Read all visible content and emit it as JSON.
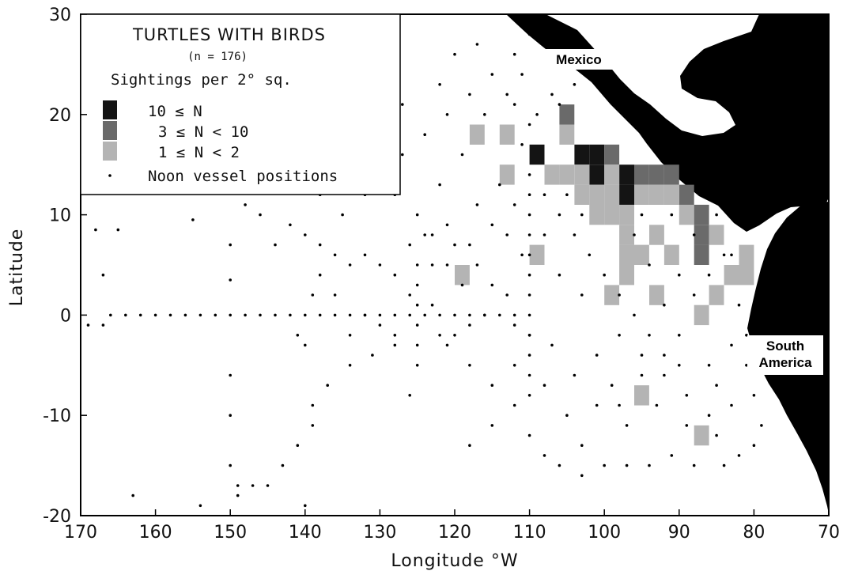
{
  "chart_data": {
    "type": "scatter",
    "title": "TURTLES WITH BIRDS",
    "subtitle": "(n = 176)",
    "xlabel": "Longitude °W",
    "ylabel": "Latitude",
    "xlim": [
      170,
      70
    ],
    "ylim": [
      -20,
      30
    ],
    "x_direction": "decreasing",
    "x_ticks": [
      "170",
      "160",
      "150",
      "140",
      "130",
      "120",
      "110",
      "100",
      "90",
      "80",
      "70"
    ],
    "y_ticks": [
      "30",
      "20",
      "10",
      "0",
      "-10",
      "-20"
    ],
    "x_tick_values": [
      170,
      160,
      150,
      140,
      130,
      120,
      110,
      100,
      90,
      80,
      70
    ],
    "y_tick_values": [
      30,
      20,
      10,
      0,
      -10,
      -20
    ],
    "grid": false,
    "legend": {
      "placement": "top-left",
      "heading": "Sightings per 2° sq.",
      "entries": [
        {
          "label": "10 ≤ N",
          "color": "#141414"
        },
        {
          "label": "3 ≤ N < 10",
          "color": "#6a6a6a"
        },
        {
          "label": "1 ≤ N < 2",
          "color": "#b4b4b4"
        },
        {
          "label": "Noon vessel positions",
          "color": "#000000"
        }
      ]
    },
    "land_labels": [
      "Mexico",
      "South America"
    ],
    "land_color": "#000000",
    "colors": {
      "high": "#141414",
      "mid": "#6a6a6a",
      "low": "#b4b4b4"
    },
    "sighting_cells_2deg": [
      {
        "lon_w": 117,
        "lat": 18,
        "class": "low"
      },
      {
        "lon_w": 113,
        "lat": 18,
        "class": "low"
      },
      {
        "lon_w": 105,
        "lat": 20,
        "class": "mid"
      },
      {
        "lon_w": 105,
        "lat": 18,
        "class": "low"
      },
      {
        "lon_w": 113,
        "lat": 14,
        "class": "low"
      },
      {
        "lon_w": 109,
        "lat": 16,
        "class": "high"
      },
      {
        "lon_w": 103,
        "lat": 16,
        "class": "high"
      },
      {
        "lon_w": 101,
        "lat": 16,
        "class": "high"
      },
      {
        "lon_w": 101,
        "lat": 14,
        "class": "high"
      },
      {
        "lon_w": 99,
        "lat": 16,
        "class": "mid"
      },
      {
        "lon_w": 97,
        "lat": 14,
        "class": "high"
      },
      {
        "lon_w": 97,
        "lat": 12,
        "class": "high"
      },
      {
        "lon_w": 95,
        "lat": 14,
        "class": "mid"
      },
      {
        "lon_w": 93,
        "lat": 14,
        "class": "mid"
      },
      {
        "lon_w": 91,
        "lat": 14,
        "class": "mid"
      },
      {
        "lon_w": 89,
        "lat": 12,
        "class": "mid"
      },
      {
        "lon_w": 91,
        "lat": 12,
        "class": "low"
      },
      {
        "lon_w": 107,
        "lat": 14,
        "class": "low"
      },
      {
        "lon_w": 105,
        "lat": 14,
        "class": "low"
      },
      {
        "lon_w": 103,
        "lat": 14,
        "class": "low"
      },
      {
        "lon_w": 99,
        "lat": 14,
        "class": "low"
      },
      {
        "lon_w": 93,
        "lat": 12,
        "class": "low"
      },
      {
        "lon_w": 103,
        "lat": 12,
        "class": "low"
      },
      {
        "lon_w": 101,
        "lat": 12,
        "class": "low"
      },
      {
        "lon_w": 99,
        "lat": 12,
        "class": "low"
      },
      {
        "lon_w": 95,
        "lat": 12,
        "class": "low"
      },
      {
        "lon_w": 101,
        "lat": 10,
        "class": "low"
      },
      {
        "lon_w": 99,
        "lat": 10,
        "class": "low"
      },
      {
        "lon_w": 97,
        "lat": 10,
        "class": "low"
      },
      {
        "lon_w": 97,
        "lat": 8,
        "class": "low"
      },
      {
        "lon_w": 97,
        "lat": 6,
        "class": "low"
      },
      {
        "lon_w": 97,
        "lat": 4,
        "class": "low"
      },
      {
        "lon_w": 95,
        "lat": 6,
        "class": "low"
      },
      {
        "lon_w": 93,
        "lat": 8,
        "class": "low"
      },
      {
        "lon_w": 91,
        "lat": 6,
        "class": "low"
      },
      {
        "lon_w": 89,
        "lat": 10,
        "class": "low"
      },
      {
        "lon_w": 87,
        "lat": 10,
        "class": "mid"
      },
      {
        "lon_w": 87,
        "lat": 8,
        "class": "mid"
      },
      {
        "lon_w": 87,
        "lat": 6,
        "class": "mid"
      },
      {
        "lon_w": 85,
        "lat": 8,
        "class": "low"
      },
      {
        "lon_w": 83,
        "lat": 4,
        "class": "low"
      },
      {
        "lon_w": 81,
        "lat": 6,
        "class": "low"
      },
      {
        "lon_w": 81,
        "lat": 4,
        "class": "low"
      },
      {
        "lon_w": 109,
        "lat": 6,
        "class": "low"
      },
      {
        "lon_w": 119,
        "lat": 4,
        "class": "low"
      },
      {
        "lon_w": 99,
        "lat": 2,
        "class": "low"
      },
      {
        "lon_w": 93,
        "lat": 2,
        "class": "low"
      },
      {
        "lon_w": 85,
        "lat": 2,
        "class": "low"
      },
      {
        "lon_w": 87,
        "lat": 0,
        "class": "low"
      },
      {
        "lon_w": 95,
        "lat": -8,
        "class": "low"
      },
      {
        "lon_w": 87,
        "lat": -12,
        "class": "low"
      }
    ],
    "noon_vessel_positions": [
      [
        168,
        8.5
      ],
      [
        165,
        8.5
      ],
      [
        167,
        4
      ],
      [
        169,
        -1
      ],
      [
        167,
        -1
      ],
      [
        163,
        -18
      ],
      [
        155,
        9.5
      ],
      [
        154,
        -19
      ],
      [
        150,
        7
      ],
      [
        150,
        3.5
      ],
      [
        150,
        -6
      ],
      [
        150,
        -10
      ],
      [
        150,
        -15
      ],
      [
        149,
        -17
      ],
      [
        149,
        -18
      ],
      [
        147,
        -17
      ],
      [
        145,
        -17
      ],
      [
        143,
        -15
      ],
      [
        141,
        -13
      ],
      [
        140,
        -19
      ],
      [
        139,
        -9
      ],
      [
        139,
        -11
      ],
      [
        137,
        -7
      ],
      [
        134,
        -5
      ],
      [
        131,
        -4
      ],
      [
        128,
        -3
      ],
      [
        126,
        -8
      ],
      [
        121,
        -3
      ],
      [
        118,
        -13
      ],
      [
        115,
        -11
      ],
      [
        112,
        -5
      ],
      [
        110,
        -12
      ],
      [
        108,
        -14
      ],
      [
        106,
        -15
      ],
      [
        103,
        -16
      ],
      [
        100,
        -15
      ],
      [
        97,
        -15
      ],
      [
        94,
        -15
      ],
      [
        91,
        -14
      ],
      [
        88,
        -15
      ],
      [
        84,
        -15
      ],
      [
        82,
        -14
      ],
      [
        80,
        -13
      ],
      [
        79,
        -11
      ],
      [
        80,
        -8
      ],
      [
        81,
        -5
      ],
      [
        81,
        -2
      ],
      [
        82,
        1
      ],
      [
        83,
        -3
      ],
      [
        85,
        -7
      ],
      [
        86,
        -10
      ],
      [
        89,
        -8
      ],
      [
        92,
        -6
      ],
      [
        95,
        -4
      ],
      [
        98,
        -2
      ],
      [
        101,
        -4
      ],
      [
        104,
        -6
      ],
      [
        107,
        -3
      ],
      [
        112,
        -9
      ],
      [
        115,
        -7
      ],
      [
        118,
        -5
      ],
      [
        120,
        -2
      ],
      [
        123,
        1
      ],
      [
        126,
        2
      ],
      [
        128,
        4
      ],
      [
        130,
        5
      ],
      [
        132,
        6
      ],
      [
        134,
        5
      ],
      [
        136,
        6
      ],
      [
        138,
        7
      ],
      [
        140,
        8
      ],
      [
        142,
        9
      ],
      [
        144,
        7
      ],
      [
        146,
        10
      ],
      [
        148,
        11
      ],
      [
        145,
        13
      ],
      [
        142,
        14
      ],
      [
        138,
        12
      ],
      [
        135,
        10
      ],
      [
        132,
        12
      ],
      [
        130,
        14
      ],
      [
        127,
        16
      ],
      [
        124,
        18
      ],
      [
        121,
        20
      ],
      [
        118,
        22
      ],
      [
        115,
        24
      ],
      [
        112,
        26
      ],
      [
        110,
        28
      ],
      [
        108,
        27
      ],
      [
        106,
        25
      ],
      [
        104,
        23
      ],
      [
        113,
        22
      ],
      [
        116,
        20
      ],
      [
        119,
        16
      ],
      [
        122,
        13
      ],
      [
        125,
        10
      ],
      [
        121,
        9
      ],
      [
        118,
        7
      ],
      [
        115,
        9
      ],
      [
        112,
        11
      ],
      [
        114,
        13
      ],
      [
        117,
        11
      ],
      [
        120,
        7
      ],
      [
        123,
        5
      ],
      [
        126,
        7
      ],
      [
        120,
        26
      ],
      [
        117,
        27
      ],
      [
        122,
        23
      ],
      [
        127,
        21
      ],
      [
        131,
        17
      ],
      [
        135,
        15
      ],
      [
        128,
        12
      ],
      [
        124,
        8
      ],
      [
        111,
        17
      ],
      [
        110,
        19
      ],
      [
        112,
        21
      ],
      [
        111,
        24
      ],
      [
        107,
        22
      ],
      [
        106,
        21
      ],
      [
        109,
        20
      ],
      [
        108,
        12
      ],
      [
        106,
        10
      ],
      [
        104,
        8
      ],
      [
        102,
        6
      ],
      [
        100,
        4
      ],
      [
        98,
        2
      ],
      [
        96,
        0
      ],
      [
        94,
        -2
      ],
      [
        92,
        -4
      ],
      [
        90,
        -2
      ],
      [
        88,
        2
      ],
      [
        86,
        4
      ],
      [
        84,
        6
      ],
      [
        82,
        9
      ],
      [
        88,
        8
      ],
      [
        90,
        4
      ],
      [
        92,
        1
      ],
      [
        94,
        5
      ],
      [
        96,
        8
      ],
      [
        103,
        2
      ],
      [
        106,
        4
      ],
      [
        108,
        8
      ],
      [
        111,
        6
      ],
      [
        113,
        2
      ],
      [
        116,
        0
      ],
      [
        118,
        -1
      ],
      [
        122,
        -2
      ],
      [
        101,
        -9
      ],
      [
        97,
        -11
      ],
      [
        93,
        -9
      ],
      [
        89,
        -11
      ],
      [
        85,
        -12
      ],
      [
        83,
        -9
      ],
      [
        86,
        -5
      ],
      [
        90,
        -5
      ],
      [
        105,
        -10
      ],
      [
        108,
        -7
      ],
      [
        110,
        -2
      ],
      [
        112,
        -1
      ],
      [
        115,
        3
      ],
      [
        117,
        5
      ],
      [
        119,
        3
      ],
      [
        121,
        5
      ],
      [
        123,
        8
      ],
      [
        113,
        8
      ],
      [
        105,
        12
      ],
      [
        103,
        10
      ],
      [
        95,
        10
      ],
      [
        91,
        10
      ],
      [
        87,
        12
      ],
      [
        85,
        10
      ],
      [
        83,
        6
      ],
      [
        95,
        -6
      ],
      [
        99,
        -7
      ],
      [
        103,
        -13
      ],
      [
        98,
        -9
      ],
      [
        140,
        0
      ],
      [
        139,
        2
      ],
      [
        141,
        -2
      ],
      [
        140,
        -3
      ],
      [
        138,
        4
      ],
      [
        136,
        2
      ],
      [
        134,
        -2
      ],
      [
        132,
        0
      ],
      [
        130,
        -1
      ],
      [
        128,
        0
      ],
      [
        126,
        0
      ],
      [
        124,
        0
      ],
      [
        122,
        0
      ],
      [
        120,
        0
      ],
      [
        118,
        0
      ],
      [
        116,
        0
      ],
      [
        114,
        0
      ],
      [
        112,
        0
      ],
      [
        110,
        0
      ],
      [
        110,
        2
      ],
      [
        110,
        4
      ],
      [
        110,
        -2
      ],
      [
        110,
        -4
      ],
      [
        110,
        -6
      ],
      [
        110,
        -8
      ],
      [
        110,
        6
      ],
      [
        110,
        8
      ],
      [
        110,
        10
      ],
      [
        110,
        12
      ],
      [
        110,
        14
      ],
      [
        160,
        0
      ],
      [
        158,
        0
      ],
      [
        156,
        0
      ],
      [
        154,
        0
      ],
      [
        152,
        0
      ],
      [
        150,
        0
      ],
      [
        148,
        0
      ],
      [
        146,
        0
      ],
      [
        144,
        0
      ],
      [
        142,
        0
      ],
      [
        162,
        0
      ],
      [
        164,
        0
      ],
      [
        166,
        0
      ],
      [
        138,
        0
      ],
      [
        136,
        0
      ],
      [
        134,
        0
      ],
      [
        132,
        0
      ],
      [
        130,
        0
      ],
      [
        128,
        -2
      ],
      [
        125,
        -1
      ],
      [
        125,
        1
      ],
      [
        125,
        3
      ],
      [
        125,
        5
      ],
      [
        125,
        -3
      ],
      [
        125,
        -5
      ]
    ]
  }
}
